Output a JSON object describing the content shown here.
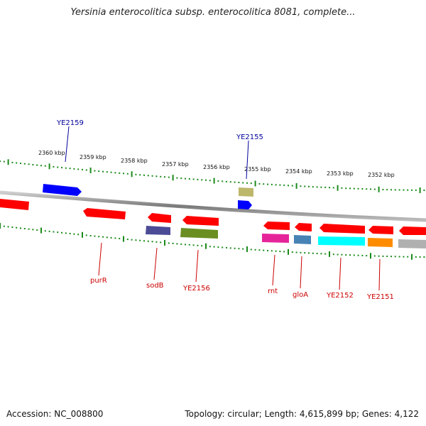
{
  "title": "Yersinia enterocolitica subsp. enterocolitica 8081, complete...",
  "footer": {
    "accession": "Accession: NC_008800",
    "topology": "Topology: circular; Length: 4,615,899 bp; Genes: 4,122"
  },
  "colors": {
    "tick": "#1a8a1a",
    "backbone": "#8a8a8a",
    "label_forward": "#000099",
    "label_reverse": "#cc0000"
  },
  "tick_labels": [
    "2360 kbp",
    "2359 kbp",
    "2358 kbp",
    "2357 kbp",
    "2356 kbp",
    "2355 kbp",
    "2354 kbp",
    "2353 kbp",
    "2352 kbp"
  ],
  "genes": [
    {
      "label": "",
      "color": "#ff0000",
      "strand": "reverse"
    },
    {
      "label": "YE2159",
      "color": "#0000ff",
      "strand": "forward"
    },
    {
      "label": "purR",
      "color": "#ff0000",
      "strand": "reverse"
    },
    {
      "label": "sodB",
      "color": "#ff0000",
      "strand": "reverse"
    },
    {
      "label": "",
      "color": "#4b4b96",
      "strand": "reverse"
    },
    {
      "label": "YE2156",
      "color": "#ff0000",
      "strand": "reverse"
    },
    {
      "label": "",
      "color": "#6b8e23",
      "strand": "reverse"
    },
    {
      "label": "YE2155",
      "color": "#bdb76b",
      "strand": "forward"
    },
    {
      "label": "",
      "color": "#0000ff",
      "strand": "forward"
    },
    {
      "label": "rnt",
      "color": "#ff0000",
      "strand": "reverse"
    },
    {
      "label": "",
      "color": "#e6249a",
      "strand": "reverse"
    },
    {
      "label": "gloA",
      "color": "#ff0000",
      "strand": "reverse"
    },
    {
      "label": "",
      "color": "#4682b4",
      "strand": "reverse"
    },
    {
      "label": "YE2152",
      "color": "#ff0000",
      "strand": "reverse"
    },
    {
      "label": "",
      "color": "#00ffff",
      "strand": "reverse"
    },
    {
      "label": "YE2151",
      "color": "#ff0000",
      "strand": "reverse"
    },
    {
      "label": "",
      "color": "#ff8c00",
      "strand": "reverse"
    },
    {
      "label": "",
      "color": "#ff0000",
      "strand": "reverse"
    },
    {
      "label": "",
      "color": "#b0b0b0",
      "strand": "reverse"
    }
  ]
}
